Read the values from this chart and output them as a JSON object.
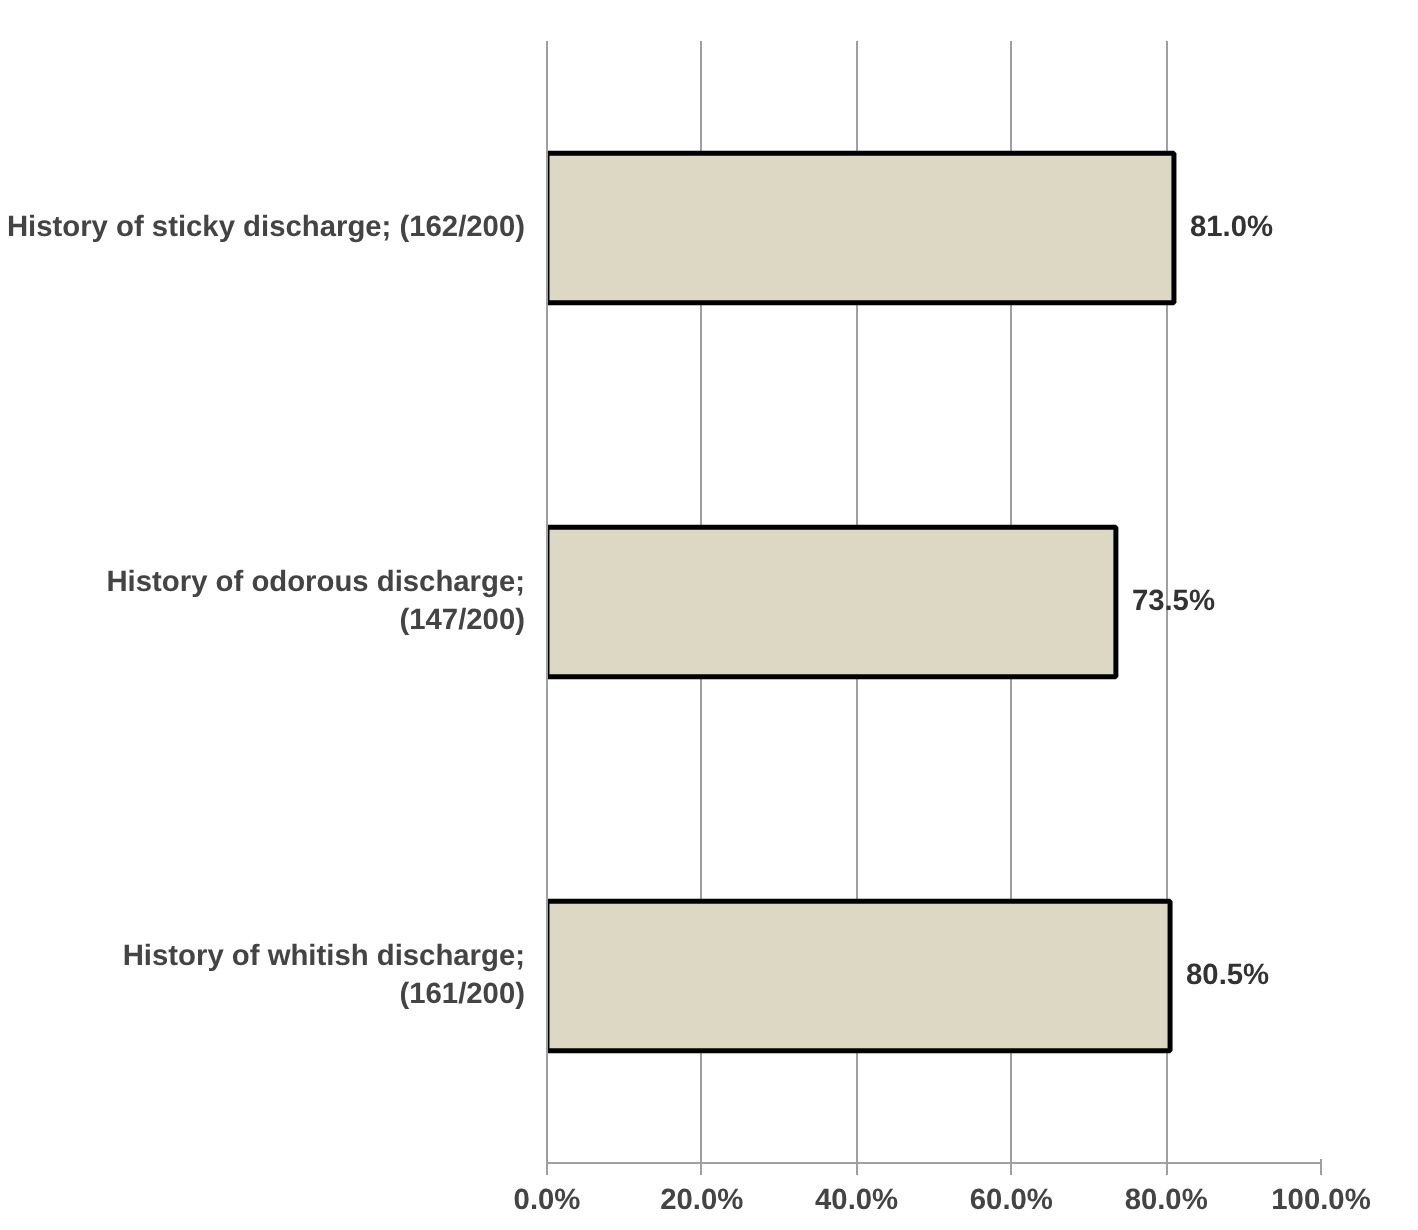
{
  "chart_data": {
    "type": "bar",
    "orientation": "horizontal",
    "categories": [
      "History of sticky discharge; (162/200)",
      "History of odorous discharge;\n(147/200)",
      "History of whitish discharge;\n(161/200)"
    ],
    "values": [
      81.0,
      73.5,
      80.5
    ],
    "value_labels": [
      "81.0%",
      "73.5%",
      "80.5%"
    ],
    "color": "#ddd8c4",
    "xlim": [
      0,
      100
    ],
    "xticks": [
      {
        "value": 0,
        "label": "0.0%"
      },
      {
        "value": 20,
        "label": "20.0%"
      },
      {
        "value": 40,
        "label": "40.0%"
      },
      {
        "value": 60,
        "label": "60.0%"
      },
      {
        "value": 80,
        "label": "80.0%"
      },
      {
        "value": 100,
        "label": "100.0%"
      }
    ],
    "grid": "x"
  }
}
